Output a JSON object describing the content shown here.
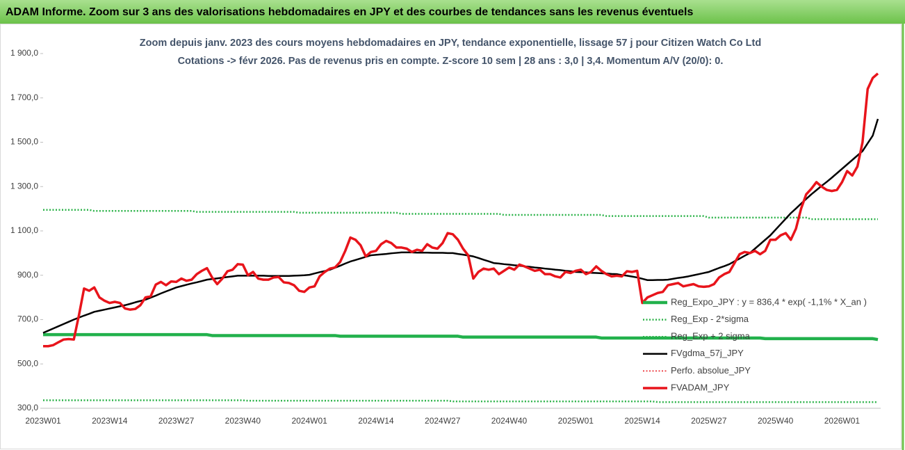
{
  "header": {
    "title": "ADAM Informe. Zoom sur 3 ans des valorisations hebdomadaires en JPY et des courbes de tendances sans les revenus éventuels"
  },
  "chart_data": {
    "type": "line",
    "title": "Zoom depuis janv. 2023 des cours moyens hebdomadaires en JPY, tendance exponentielle, lissage 57 j pour Citizen Watch Co Ltd",
    "subtitle": "Cotations -> févr 2026.  Pas de revenus pris en compte. Z-score 10 sem | 28 ans : 3,0 | 3,4. Momentum A/V (20/0): 0.",
    "categories": [
      "2023W01",
      null,
      null,
      null,
      null,
      null,
      null,
      null,
      null,
      null,
      null,
      null,
      null,
      "2023W14",
      null,
      null,
      null,
      null,
      null,
      null,
      null,
      null,
      null,
      null,
      null,
      null,
      "2023W27",
      null,
      null,
      null,
      null,
      null,
      null,
      null,
      null,
      null,
      null,
      null,
      null,
      "2023W40",
      null,
      null,
      null,
      null,
      null,
      null,
      null,
      null,
      null,
      null,
      null,
      null,
      "2024W01",
      null,
      null,
      null,
      null,
      null,
      null,
      null,
      null,
      null,
      null,
      null,
      null,
      "2024W14",
      null,
      null,
      null,
      null,
      null,
      null,
      null,
      null,
      null,
      null,
      null,
      null,
      "2024W27",
      null,
      null,
      null,
      null,
      null,
      null,
      null,
      null,
      null,
      null,
      null,
      null,
      "2024W40",
      null,
      null,
      null,
      null,
      null,
      null,
      null,
      null,
      null,
      null,
      null,
      null,
      "2025W01",
      null,
      null,
      null,
      null,
      null,
      null,
      null,
      null,
      null,
      null,
      null,
      null,
      "2025W14",
      null,
      null,
      null,
      null,
      null,
      null,
      null,
      null,
      null,
      null,
      null,
      null,
      "2025W27",
      null,
      null,
      null,
      null,
      null,
      null,
      null,
      null,
      null,
      null,
      null,
      null,
      "2025W40",
      null,
      null,
      null,
      null,
      null,
      null,
      null,
      null,
      null,
      null,
      null,
      null,
      "2026W01",
      null,
      null,
      null,
      null,
      null,
      null,
      null
    ],
    "ylim": [
      300,
      1900
    ],
    "yticks": [
      {
        "value": 300,
        "label": "300,0"
      },
      {
        "value": 500,
        "label": "500,0"
      },
      {
        "value": 700,
        "label": "700,0"
      },
      {
        "value": 900,
        "label": "900,0"
      },
      {
        "value": 1100,
        "label": "1 100,0"
      },
      {
        "value": 1300,
        "label": "1 300,0"
      },
      {
        "value": 1500,
        "label": "1 500,0"
      },
      {
        "value": 1700,
        "label": "1 700,0"
      },
      {
        "value": 1900,
        "label": "1 900,0"
      }
    ],
    "grid": false,
    "legend": "right",
    "series": [
      {
        "name": "Reg_Expo_JPY : y = 836,4 * exp( -1,1% *  X_an )",
        "color": "#22b14c",
        "style": "solid",
        "values": [
          632,
          632,
          632,
          632,
          632,
          632,
          632,
          632,
          632,
          632,
          632,
          632,
          632,
          632,
          632,
          632,
          632,
          632,
          632,
          632,
          632,
          632,
          632,
          632,
          632,
          632,
          632,
          632,
          632,
          632,
          632,
          632,
          632,
          628,
          628,
          628,
          628,
          628,
          628,
          628,
          628,
          628,
          628,
          628,
          628,
          628,
          628,
          628,
          628,
          628,
          628,
          628,
          628,
          628,
          628,
          628,
          628,
          628,
          625,
          625,
          625,
          625,
          625,
          625,
          625,
          625,
          625,
          625,
          625,
          625,
          625,
          625,
          625,
          625,
          625,
          625,
          625,
          625,
          625,
          625,
          625,
          625,
          621,
          621,
          621,
          621,
          621,
          621,
          621,
          621,
          621,
          621,
          621,
          621,
          621,
          621,
          621,
          621,
          621,
          621,
          621,
          621,
          621,
          621,
          621,
          621,
          621,
          621,
          621,
          617,
          617,
          617,
          617,
          617,
          617,
          617,
          617,
          617,
          617,
          617,
          617,
          617,
          617,
          617,
          617,
          617,
          617,
          617,
          617,
          617,
          617,
          617,
          617,
          617,
          617,
          617,
          617,
          617,
          617,
          617,
          617,
          614,
          614,
          614,
          614,
          614,
          614,
          614,
          614,
          614,
          614,
          614,
          614,
          614,
          614,
          614,
          614,
          614,
          614,
          614,
          614,
          614,
          614,
          610
        ]
      },
      {
        "name": "Reg_Exp - 2*sigma",
        "color": "#2db34a",
        "style": "dotted",
        "values": [
          336,
          336,
          336,
          336,
          336,
          336,
          336,
          336,
          336,
          336,
          336,
          336,
          336,
          336,
          336,
          336,
          336,
          336,
          336,
          336,
          336,
          336,
          336,
          336,
          336,
          336,
          336,
          336,
          336,
          336,
          336,
          336,
          336,
          336,
          336,
          336,
          336,
          336,
          336,
          336,
          334,
          334,
          334,
          334,
          334,
          334,
          334,
          334,
          334,
          334,
          334,
          334,
          334,
          334,
          334,
          334,
          334,
          334,
          334,
          334,
          334,
          334,
          334,
          334,
          334,
          334,
          334,
          334,
          334,
          334,
          334,
          334,
          334,
          334,
          334,
          334,
          334,
          334,
          334,
          334,
          331,
          331,
          331,
          331,
          331,
          331,
          331,
          331,
          331,
          331,
          331,
          331,
          331,
          331,
          331,
          331,
          331,
          331,
          331,
          331,
          331,
          331,
          331,
          331,
          331,
          331,
          331,
          331,
          331,
          331,
          331,
          331,
          331,
          331,
          331,
          331,
          331,
          331,
          331,
          331,
          328,
          328,
          328,
          328,
          328,
          328,
          328,
          328,
          328,
          328,
          328,
          328,
          328,
          328,
          328,
          328,
          328,
          328,
          328,
          328,
          328,
          328,
          328,
          328,
          328,
          328,
          328,
          328,
          328,
          328,
          328,
          328,
          328,
          328,
          328,
          328,
          328,
          328,
          328,
          328,
          328,
          328,
          328,
          328
        ]
      },
      {
        "name": "Reg_Exp + 2 sigma",
        "color": "#2db34a",
        "style": "dotted",
        "values": [
          1195,
          1195,
          1195,
          1195,
          1195,
          1195,
          1195,
          1195,
          1195,
          1195,
          1190,
          1190,
          1190,
          1190,
          1190,
          1190,
          1190,
          1190,
          1190,
          1190,
          1190,
          1190,
          1190,
          1190,
          1190,
          1190,
          1190,
          1190,
          1190,
          1190,
          1186,
          1186,
          1186,
          1186,
          1186,
          1186,
          1186,
          1186,
          1186,
          1186,
          1186,
          1186,
          1186,
          1186,
          1186,
          1186,
          1186,
          1186,
          1186,
          1186,
          1182,
          1182,
          1182,
          1182,
          1182,
          1182,
          1182,
          1182,
          1182,
          1182,
          1182,
          1182,
          1182,
          1182,
          1182,
          1182,
          1182,
          1182,
          1182,
          1182,
          1177,
          1177,
          1177,
          1177,
          1177,
          1177,
          1177,
          1177,
          1177,
          1177,
          1177,
          1177,
          1177,
          1177,
          1177,
          1177,
          1177,
          1177,
          1177,
          1177,
          1172,
          1172,
          1172,
          1172,
          1172,
          1172,
          1172,
          1172,
          1172,
          1172,
          1172,
          1172,
          1172,
          1172,
          1172,
          1172,
          1172,
          1172,
          1172,
          1172,
          1167,
          1167,
          1167,
          1167,
          1167,
          1167,
          1167,
          1167,
          1167,
          1167,
          1167,
          1167,
          1167,
          1167,
          1167,
          1167,
          1167,
          1167,
          1167,
          1167,
          1160,
          1160,
          1160,
          1160,
          1160,
          1160,
          1160,
          1160,
          1160,
          1160,
          1160,
          1160,
          1160,
          1160,
          1160,
          1160,
          1160,
          1160,
          1160,
          1160,
          1153,
          1153,
          1153,
          1153,
          1153,
          1153,
          1153,
          1153,
          1153,
          1153,
          1153,
          1153,
          1153,
          1153
        ]
      },
      {
        "name": "FVgdma_57j_JPY",
        "color": "#000000",
        "style": "solid",
        "values": [
          640,
          650,
          660,
          670,
          680,
          690,
          700,
          709,
          718,
          726,
          735,
          740,
          745,
          750,
          755,
          760,
          765,
          771,
          778,
          784,
          790,
          799,
          808,
          818,
          827,
          836,
          845,
          851,
          857,
          863,
          868,
          874,
          880,
          883,
          886,
          889,
          892,
          895,
          898,
          898,
          898,
          898,
          898,
          898,
          897,
          897,
          897,
          897,
          897,
          898,
          899,
          900,
          902,
          908,
          914,
          919,
          925,
          934,
          943,
          953,
          962,
          969,
          976,
          983,
          990,
          992,
          994,
          996,
          999,
          1001,
          1003,
          1003,
          1003,
          1002,
          1002,
          1002,
          1001,
          1001,
          1001,
          1000,
          1000,
          996,
          993,
          989,
          985,
          978,
          970,
          963,
          955,
          953,
          950,
          948,
          945,
          943,
          940,
          938,
          935,
          933,
          930,
          928,
          925,
          923,
          920,
          918,
          915,
          914,
          913,
          911,
          910,
          909,
          908,
          906,
          905,
          901,
          898,
          894,
          890,
          884,
          878,
          878,
          879,
          879,
          880,
          884,
          888,
          891,
          895,
          900,
          905,
          910,
          915,
          924,
          933,
          941,
          950,
          963,
          975,
          988,
          1000,
          1020,
          1040,
          1060,
          1080,
          1105,
          1130,
          1155,
          1180,
          1201,
          1223,
          1244,
          1265,
          1284,
          1303,
          1321,
          1340,
          1360,
          1380,
          1400,
          1420,
          1440,
          1460,
          1495,
          1530,
          1605
        ]
      },
      {
        "name": "Perfo. absolue_JPY",
        "color": "#e8141b",
        "style": "dotted",
        "values": [
          null,
          null,
          null,
          null,
          null,
          null,
          null,
          null,
          null,
          null,
          null,
          null,
          null,
          null,
          null,
          null,
          null,
          null,
          null,
          null,
          null,
          null,
          null,
          null,
          null,
          null,
          null,
          null,
          null,
          null,
          null,
          null,
          null,
          null,
          null,
          null,
          null,
          null,
          null,
          null,
          null,
          null,
          null,
          null,
          null,
          null,
          null,
          null,
          null,
          null,
          null,
          null,
          null,
          null,
          null,
          null,
          null,
          null,
          null,
          null,
          null,
          null,
          null,
          null,
          null,
          null,
          null,
          null,
          null,
          null,
          null,
          null,
          null,
          null,
          null,
          null,
          null,
          null,
          null,
          null,
          null,
          null,
          null,
          null,
          null,
          null,
          null,
          null,
          null,
          null,
          null,
          null,
          null,
          null,
          null,
          null,
          null,
          null,
          null,
          null,
          null,
          null,
          null,
          null,
          null,
          null,
          null,
          null,
          null,
          null,
          null,
          null,
          null,
          null,
          null,
          null,
          null,
          null,
          null,
          null,
          null,
          null,
          null,
          null,
          null,
          null,
          null,
          null,
          null,
          null,
          null,
          null,
          null,
          null,
          null,
          null,
          null,
          null,
          null,
          null,
          null,
          null,
          null,
          null,
          null,
          null,
          null,
          null,
          null,
          null,
          null,
          null,
          null,
          null,
          null,
          null,
          null,
          null,
          null,
          null,
          null,
          null,
          null,
          null
        ]
      },
      {
        "name": "FVADAM_JPY",
        "color": "#e8141b",
        "style": "solid",
        "values": [
          580,
          580,
          585,
          598,
          610,
          612,
          610,
          720,
          840,
          830,
          845,
          800,
          785,
          775,
          780,
          775,
          750,
          745,
          748,
          765,
          800,
          805,
          858,
          870,
          855,
          872,
          870,
          885,
          875,
          880,
          905,
          920,
          932,
          890,
          860,
          885,
          918,
          925,
          950,
          948,
          900,
          915,
          885,
          880,
          880,
          890,
          892,
          868,
          865,
          855,
          830,
          825,
          845,
          850,
          895,
          915,
          930,
          935,
          960,
          1010,
          1070,
          1060,
          1035,
          985,
          1005,
          1010,
          1040,
          1055,
          1045,
          1025,
          1025,
          1020,
          1005,
          1015,
          1010,
          1040,
          1025,
          1020,
          1045,
          1090,
          1085,
          1060,
          1020,
          990,
          885,
          915,
          930,
          925,
          930,
          905,
          920,
          935,
          925,
          948,
          940,
          930,
          920,
          925,
          905,
          905,
          895,
          890,
          915,
          910,
          920,
          925,
          905,
          915,
          940,
          920,
          905,
          895,
          898,
          895,
          918,
          915,
          920,
          775,
          800,
          810,
          820,
          825,
          855,
          860,
          865,
          850,
          855,
          860,
          850,
          848,
          850,
          860,
          890,
          905,
          915,
          955,
          995,
          1005,
          1000,
          1010,
          995,
          1010,
          1060,
          1060,
          1080,
          1090,
          1060,
          1110,
          1200,
          1265,
          1290,
          1320,
          1300,
          1285,
          1280,
          1285,
          1320,
          1370,
          1350,
          1390,
          1500,
          1740,
          1790,
          1810
        ]
      }
    ]
  }
}
